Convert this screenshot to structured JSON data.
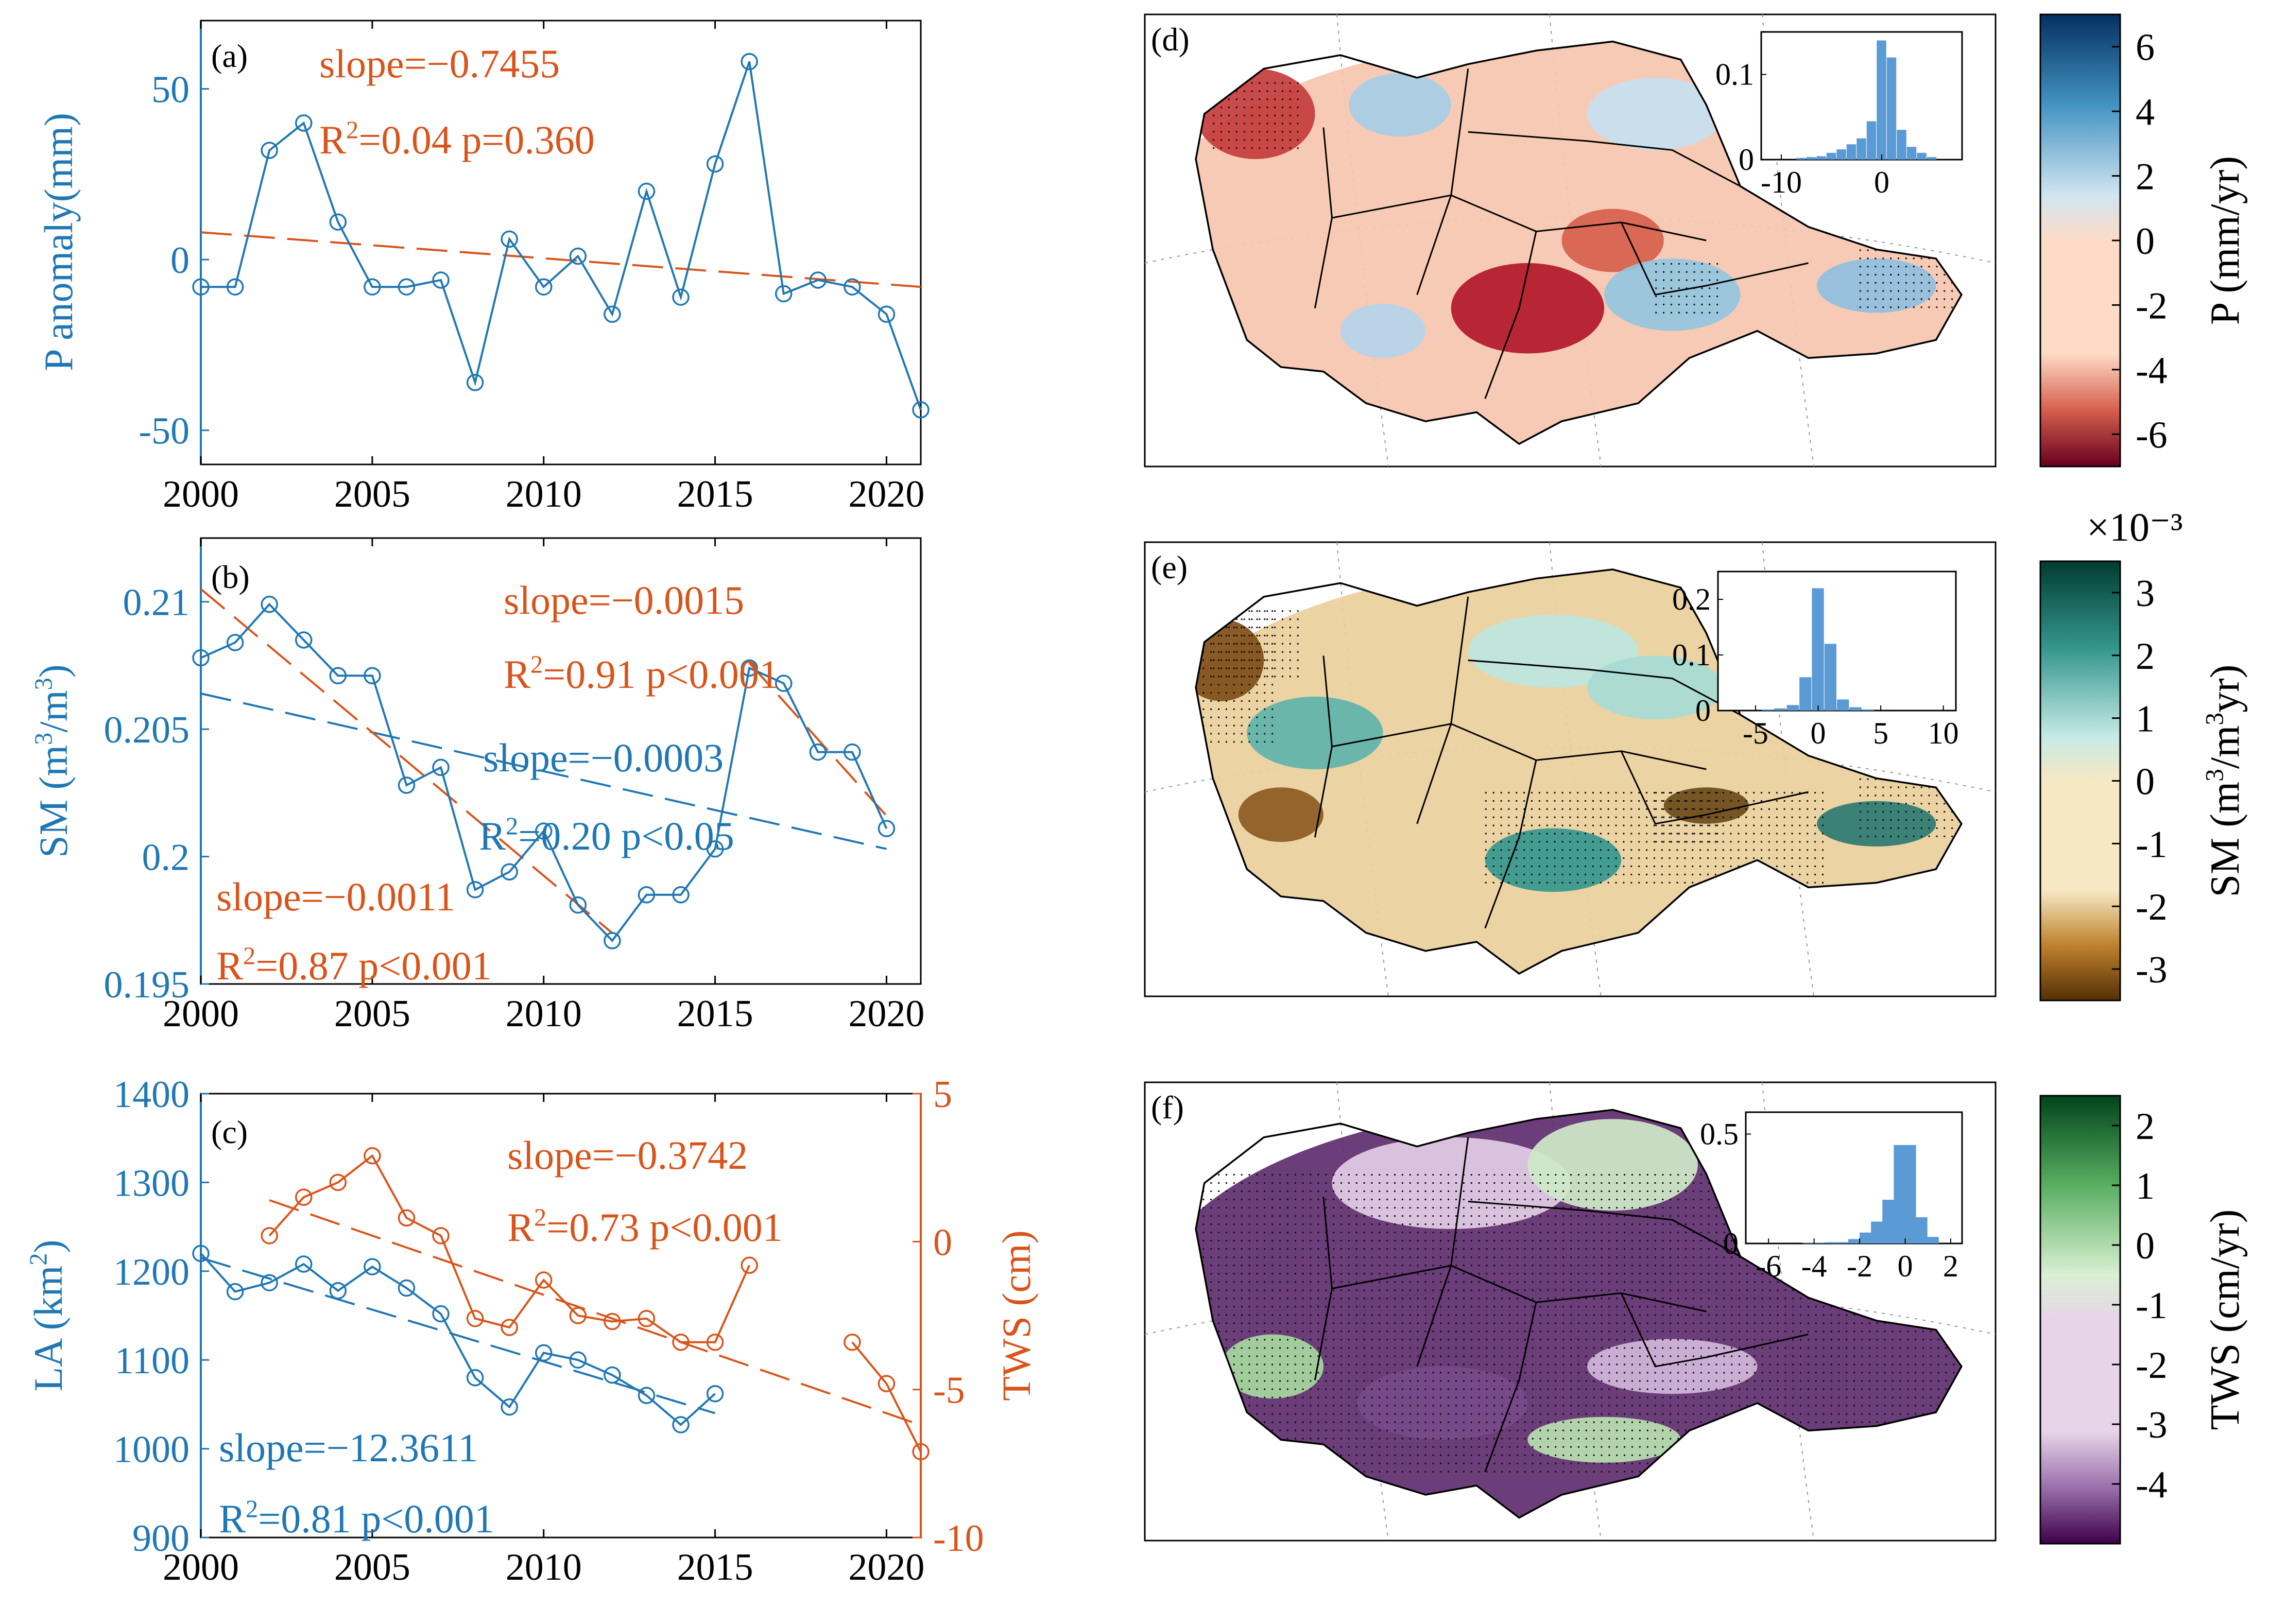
{
  "colors": {
    "blue": "#1f77b4",
    "orange": "#d9541a",
    "axis_black": "#000000",
    "hist_blue": "#5b9bd5"
  },
  "chart_data": [
    {
      "id": "panel-a",
      "type": "line",
      "panel_label": "(a)",
      "ylabel": "P anomaly(mm)",
      "xlim": [
        2000,
        2021
      ],
      "ylim": [
        -60,
        70
      ],
      "xticks": [
        "2000",
        "2005",
        "2010",
        "2015",
        "2020"
      ],
      "yticks": [
        "-50",
        "0",
        "50"
      ],
      "series": [
        {
          "name": "P anomaly",
          "color": "#1f77b4",
          "x": [
            2000,
            2001,
            2002,
            2003,
            2004,
            2005,
            2006,
            2007,
            2008,
            2009,
            2010,
            2011,
            2012,
            2013,
            2014,
            2015,
            2016,
            2017,
            2018,
            2019,
            2020,
            2021
          ],
          "values": [
            -8,
            -8,
            32,
            40,
            11,
            -8,
            -8,
            -6,
            -36,
            6,
            -8,
            1,
            -16,
            20,
            -11,
            28,
            58,
            -10,
            -6,
            -8,
            -16,
            -44
          ]
        }
      ],
      "trendlines": [
        {
          "color": "#d9541a",
          "x": [
            2000,
            2021
          ],
          "y": [
            8,
            -8
          ]
        }
      ],
      "annotations": [
        {
          "text": "slope=−0.7455",
          "color": "#d9541a"
        },
        {
          "text": "R²=0.04  p=0.360",
          "color": "#d9541a"
        }
      ]
    },
    {
      "id": "panel-b",
      "type": "line",
      "panel_label": "(b)",
      "ylabel": "SM (m³/m³)",
      "xlim": [
        2000,
        2021
      ],
      "ylim": [
        0.195,
        0.2125
      ],
      "xticks": [
        "2000",
        "2005",
        "2010",
        "2015",
        "2020"
      ],
      "yticks": [
        "0.195",
        "0.2",
        "0.205",
        "0.21"
      ],
      "series": [
        {
          "name": "SM",
          "color": "#1f77b4",
          "x": [
            2000,
            2001,
            2002,
            2003,
            2004,
            2005,
            2006,
            2007,
            2008,
            2009,
            2010,
            2011,
            2012,
            2013,
            2014,
            2015,
            2016,
            2017,
            2018,
            2019,
            2020
          ],
          "values": [
            0.2078,
            0.2084,
            0.2099,
            0.2085,
            0.2071,
            0.2071,
            0.2028,
            0.2035,
            0.1987,
            0.1994,
            0.201,
            0.1981,
            0.1967,
            0.1985,
            0.1985,
            0.2003,
            0.2074,
            0.2068,
            0.2041,
            0.2041,
            0.2011
          ]
        }
      ],
      "trendlines": [
        {
          "color": "#1f77b4",
          "x": [
            2000,
            2020
          ],
          "y": [
            0.2064,
            0.2003
          ]
        },
        {
          "color": "#d9541a",
          "x": [
            2000,
            2012
          ],
          "y": [
            0.2105,
            0.197
          ]
        },
        {
          "color": "#d9541a",
          "x": [
            2016,
            2020
          ],
          "y": [
            0.2076,
            0.2016
          ]
        }
      ],
      "annotations": [
        {
          "text": "slope=−0.0015",
          "color": "#d9541a"
        },
        {
          "text": "R²=0.91  p<0.001",
          "color": "#d9541a"
        },
        {
          "text": "slope=−0.0003",
          "color": "#1f77b4"
        },
        {
          "text": "R²=0.20  p<0.05",
          "color": "#1f77b4"
        },
        {
          "text": "slope=−0.0011",
          "color": "#d9541a"
        },
        {
          "text": "R²=0.87  p<0.001",
          "color": "#d9541a"
        }
      ]
    },
    {
      "id": "panel-c",
      "type": "line",
      "panel_label": "(c)",
      "ylabel": "LA (km²)",
      "ylabel_right": "TWS (cm)",
      "xlim": [
        2000,
        2021
      ],
      "ylim": [
        900,
        1400
      ],
      "ylim_right": [
        -10,
        5
      ],
      "xticks": [
        "2000",
        "2005",
        "2010",
        "2015",
        "2020"
      ],
      "yticks": [
        "900",
        "1000",
        "1100",
        "1200",
        "1300",
        "1400"
      ],
      "yticks_right": [
        "-10",
        "-5",
        "0",
        "5"
      ],
      "series": [
        {
          "name": "LA",
          "axis": "left",
          "color": "#1f77b4",
          "x": [
            2000,
            2001,
            2002,
            2003,
            2004,
            2005,
            2006,
            2007,
            2008,
            2009,
            2010,
            2011,
            2012,
            2013,
            2014,
            2015
          ],
          "values": [
            1220,
            1177,
            1187,
            1208,
            1178,
            1205,
            1181,
            1152,
            1080,
            1047,
            1108,
            1100,
            1083,
            1060,
            1027,
            1062
          ]
        },
        {
          "name": "TWS",
          "axis": "right",
          "color": "#d9541a",
          "x": [
            2002,
            2003,
            2004,
            2005,
            2006,
            2007,
            2008,
            2009,
            2010,
            2011,
            2012,
            2013,
            2014,
            2015,
            2016,
            2019,
            2020,
            2021
          ],
          "values": [
            0.2,
            1.5,
            2.0,
            2.9,
            0.8,
            0.2,
            -2.6,
            -2.9,
            -1.3,
            -2.5,
            -2.7,
            -2.6,
            -3.4,
            -3.4,
            -0.8,
            -3.4,
            -4.8,
            -7.1
          ]
        }
      ],
      "trendlines": [
        {
          "color": "#1f77b4",
          "axis": "left",
          "x": [
            2000,
            2015
          ],
          "y": [
            1215,
            1040
          ]
        },
        {
          "color": "#d9541a",
          "axis": "right",
          "x": [
            2002,
            2021
          ],
          "y": [
            1.4,
            -6.2
          ]
        }
      ],
      "annotations": [
        {
          "text": "slope=−0.3742",
          "color": "#d9541a"
        },
        {
          "text": "R²=0.73  p<0.001",
          "color": "#d9541a"
        },
        {
          "text": "slope=−12.3611",
          "color": "#1f77b4"
        },
        {
          "text": "R²=0.81  p<0.001",
          "color": "#1f77b4"
        }
      ]
    },
    {
      "id": "panel-d",
      "type": "heatmap",
      "panel_label": "(d)",
      "colorbar_label": "P (mm/yr)",
      "colorbar_ticks": [
        "6",
        "4",
        "2",
        "0",
        "-2",
        "-4",
        "-6"
      ],
      "colorbar_range": [
        -7,
        7
      ],
      "colormap": [
        "#67001f",
        "#d6604d",
        "#fddbc7",
        "#d1e5f0",
        "#4393c3",
        "#053061"
      ],
      "inset_histogram": {
        "xticks": [
          "-10",
          "0"
        ],
        "yticks": [
          "0",
          "0.1"
        ],
        "xlim": [
          -12,
          8
        ],
        "ylim": [
          0,
          0.15
        ],
        "bins": [
          -8,
          -7,
          -6,
          -5,
          -4,
          -3,
          -2,
          -1,
          0,
          1,
          2,
          3,
          4,
          5
        ],
        "values": [
          0.002,
          0.003,
          0.004,
          0.008,
          0.012,
          0.018,
          0.025,
          0.045,
          0.14,
          0.12,
          0.035,
          0.015,
          0.008,
          0.003
        ]
      }
    },
    {
      "id": "panel-e",
      "type": "heatmap",
      "panel_label": "(e)",
      "colorbar_label": "SM (m³/m³yr)",
      "colorbar_exponent": "×10⁻³",
      "colorbar_ticks": [
        "3",
        "2",
        "1",
        "0",
        "-1",
        "-2",
        "-3"
      ],
      "colorbar_range": [
        -3.5,
        3.5
      ],
      "colormap": [
        "#543005",
        "#bf812d",
        "#f6e8c3",
        "#c7eae5",
        "#35978f",
        "#003c30"
      ],
      "inset_histogram": {
        "xticks": [
          "-5",
          "0",
          "5",
          "10"
        ],
        "yticks": [
          "0",
          "0.1",
          "0.2"
        ],
        "xlim": [
          -8,
          11
        ],
        "ylim": [
          0,
          0.25
        ],
        "bins": [
          -4,
          -3,
          -2,
          -1,
          0,
          1,
          2,
          3,
          4
        ],
        "values": [
          0.002,
          0.004,
          0.01,
          0.06,
          0.22,
          0.12,
          0.02,
          0.006,
          0.002
        ]
      }
    },
    {
      "id": "panel-f",
      "type": "heatmap",
      "panel_label": "(f)",
      "colorbar_label": "TWS (cm/yr)",
      "colorbar_ticks": [
        "2",
        "1",
        "0",
        "-1",
        "-2",
        "-3",
        "-4"
      ],
      "colorbar_range": [
        -5,
        2.5
      ],
      "colormap": [
        "#40004b",
        "#9970ab",
        "#e7d4e8",
        "#d9f0d3",
        "#5aae61",
        "#00441b"
      ],
      "inset_histogram": {
        "xticks": [
          "-6",
          "-4",
          "-2",
          "0",
          "2"
        ],
        "yticks": [
          "0",
          "0.5"
        ],
        "xlim": [
          -7,
          2.5
        ],
        "ylim": [
          0,
          0.6
        ],
        "bins": [
          -4,
          -3,
          -2,
          -1.5,
          -1,
          -0.5,
          0,
          0.5,
          1
        ],
        "values": [
          0.003,
          0.006,
          0.02,
          0.05,
          0.1,
          0.2,
          0.45,
          0.12,
          0.03
        ]
      }
    }
  ]
}
